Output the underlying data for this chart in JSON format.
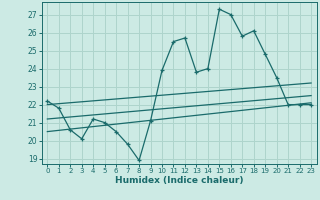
{
  "xlabel": "Humidex (Indice chaleur)",
  "bg_color": "#cceae4",
  "grid_color": "#aed4cc",
  "line_color": "#1a6b6b",
  "xlim": [
    -0.5,
    23.5
  ],
  "ylim": [
    18.7,
    27.7
  ],
  "xticks": [
    0,
    1,
    2,
    3,
    4,
    5,
    6,
    7,
    8,
    9,
    10,
    11,
    12,
    13,
    14,
    15,
    16,
    17,
    18,
    19,
    20,
    21,
    22,
    23
  ],
  "yticks": [
    19,
    20,
    21,
    22,
    23,
    24,
    25,
    26,
    27
  ],
  "main_x": [
    0,
    1,
    2,
    3,
    4,
    5,
    6,
    7,
    8,
    9,
    10,
    11,
    12,
    13,
    14,
    15,
    16,
    17,
    18,
    19,
    20,
    21,
    22,
    23
  ],
  "main_y": [
    22.2,
    21.8,
    20.6,
    20.1,
    21.2,
    21.0,
    20.5,
    19.8,
    18.9,
    21.1,
    23.9,
    25.5,
    25.7,
    23.8,
    24.0,
    27.3,
    27.0,
    25.8,
    26.1,
    24.8,
    23.5,
    22.0,
    22.0,
    22.0
  ],
  "trend1_x": [
    0,
    23
  ],
  "trend1_y": [
    22.0,
    23.2
  ],
  "trend2_x": [
    0,
    23
  ],
  "trend2_y": [
    21.2,
    22.5
  ],
  "trend3_x": [
    0,
    23
  ],
  "trend3_y": [
    20.5,
    22.1
  ]
}
